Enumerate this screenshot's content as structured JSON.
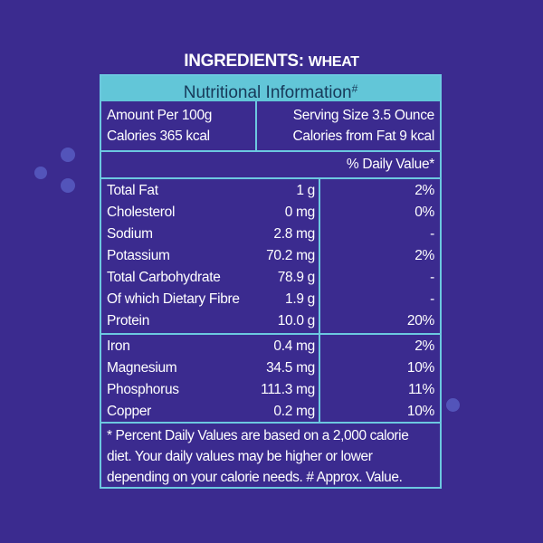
{
  "title": {
    "main": "INGREDIENTS:",
    "sub": "WHEAT"
  },
  "header": {
    "label": "Nutritional Information",
    "mark": "#"
  },
  "summary": {
    "amount": "Amount Per 100g",
    "calories": "Calories 365 kcal",
    "serving": "Serving Size 3.5 Ounce",
    "fat_calories": "Calories from Fat 9 kcal"
  },
  "daily_value_label": "% Daily Value*",
  "nutrients": [
    {
      "name": "Total Fat",
      "amount": "1 g",
      "dv": "2%"
    },
    {
      "name": "Cholesterol",
      "amount": "0 mg",
      "dv": "0%"
    },
    {
      "name": "Sodium",
      "amount": "2.8 mg",
      "dv": "-"
    },
    {
      "name": "Potassium",
      "amount": "70.2 mg",
      "dv": "2%"
    },
    {
      "name": "Total Carbohydrate",
      "amount": "78.9 g",
      "dv": "-"
    },
    {
      "name": "Of which Dietary Fibre",
      "amount": "1.9 g",
      "dv": "-"
    },
    {
      "name": "Protein",
      "amount": "10.0 g",
      "dv": "20%"
    }
  ],
  "minerals": [
    {
      "name": "Iron",
      "amount": "0.4 mg",
      "dv": "2%"
    },
    {
      "name": "Magnesium",
      "amount": "34.5 mg",
      "dv": "10%"
    },
    {
      "name": "Phosphorus",
      "amount": "111.3 mg",
      "dv": "11%"
    },
    {
      "name": "Copper",
      "amount": "0.2 mg",
      "dv": "10%"
    }
  ],
  "footnote": "* Percent Daily Values are based on a 2,000 calorie diet. Your daily values may be higher or lower depending on your calorie needs.  # Approx. Value.",
  "colors": {
    "background": "#3b2b8f",
    "accent": "#62c6d8",
    "header_text": "#173a5a"
  }
}
